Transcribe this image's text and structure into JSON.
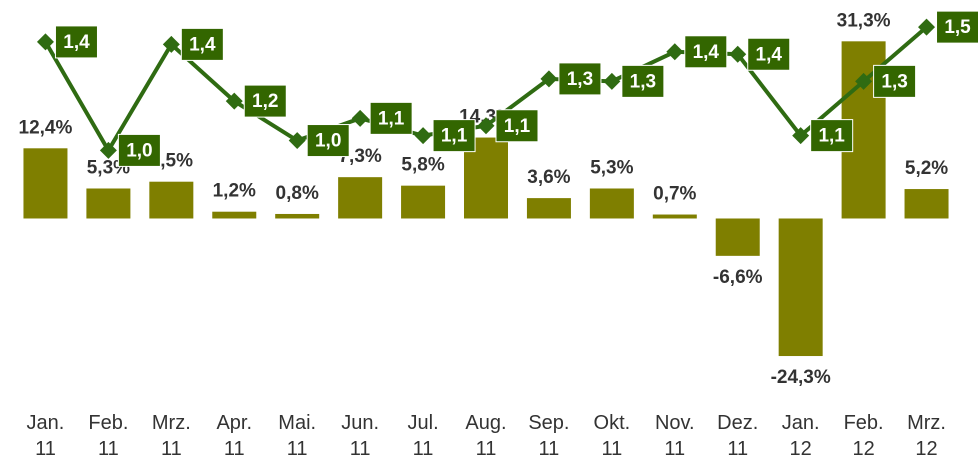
{
  "chart_data": {
    "type": "bar",
    "categories": [
      "Jan. 11",
      "Feb. 11",
      "Mrz. 11",
      "Apr. 11",
      "Mai. 11",
      "Jun. 11",
      "Jul. 11",
      "Aug. 11",
      "Sep. 11",
      "Okt. 11",
      "Nov. 11",
      "Dez. 11",
      "Jan. 12",
      "Feb. 12",
      "Mrz. 12"
    ],
    "ylim": [
      -25,
      38.6
    ],
    "y2lim": [
      0.15,
      1.61
    ],
    "series": [
      {
        "name": null,
        "type": "bar",
        "color": "#7f7f00",
        "values": [
          12.4,
          5.3,
          6.5,
          1.2,
          0.8,
          7.3,
          5.8,
          14.3,
          3.6,
          5.3,
          0.7,
          -6.6,
          -24.3,
          31.3,
          5.2
        ],
        "value_labels": [
          "12,4%",
          "5,3%",
          "6,5%",
          "1,2%",
          "0,8%",
          "7,3%",
          "5,8%",
          "14,3%",
          "3,6%",
          "5,3%",
          "0,7%",
          "-6,6%",
          "-24,3%",
          "31,3%",
          "5,2%"
        ]
      },
      {
        "name": null,
        "type": "line",
        "axis": "y2",
        "color": "#2f6b12",
        "values": [
          1.44,
          1.0,
          1.43,
          1.2,
          1.04,
          1.13,
          1.06,
          1.1,
          1.29,
          1.28,
          1.4,
          1.39,
          1.06,
          1.28,
          1.5
        ],
        "value_labels": [
          "1,4",
          "1,0",
          "1,4",
          "1,2",
          "1,0",
          "1,1",
          "1,1",
          "1,1",
          "1,3",
          "1,3",
          "1,4",
          "1,4",
          "1,1",
          "1,3",
          "1,5"
        ]
      }
    ]
  }
}
